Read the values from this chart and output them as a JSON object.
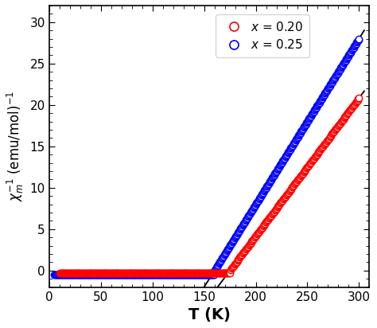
{
  "title": "",
  "xlabel": "T (K)",
  "ylabel": "$\\chi_m^{-1}$ (emu/mol)$^{-1}$",
  "xlim": [
    0,
    310
  ],
  "ylim": [
    -2,
    32
  ],
  "xticks": [
    0,
    50,
    100,
    150,
    200,
    250,
    300
  ],
  "yticks": [
    0,
    5,
    10,
    15,
    20,
    25,
    30
  ],
  "red_TC": 175,
  "red_C": 6.0,
  "red_knee": 175,
  "red_flat": -0.3,
  "blue_TC": 160,
  "blue_C": 5.0,
  "blue_knee": 160,
  "blue_flat": -0.45,
  "red_color": "#ff0000",
  "blue_color": "#0000ff",
  "fit_color": "#000000",
  "marker_size": 6,
  "marker_edge_width": 1.0,
  "n_red": 400,
  "n_blue": 500,
  "background_color": "#ffffff",
  "xlabel_fontsize": 14,
  "ylabel_fontsize": 12,
  "tick_fontsize": 11,
  "legend_fontsize": 11,
  "fit_red_T_start": 130,
  "fit_blue_T_start": 112
}
